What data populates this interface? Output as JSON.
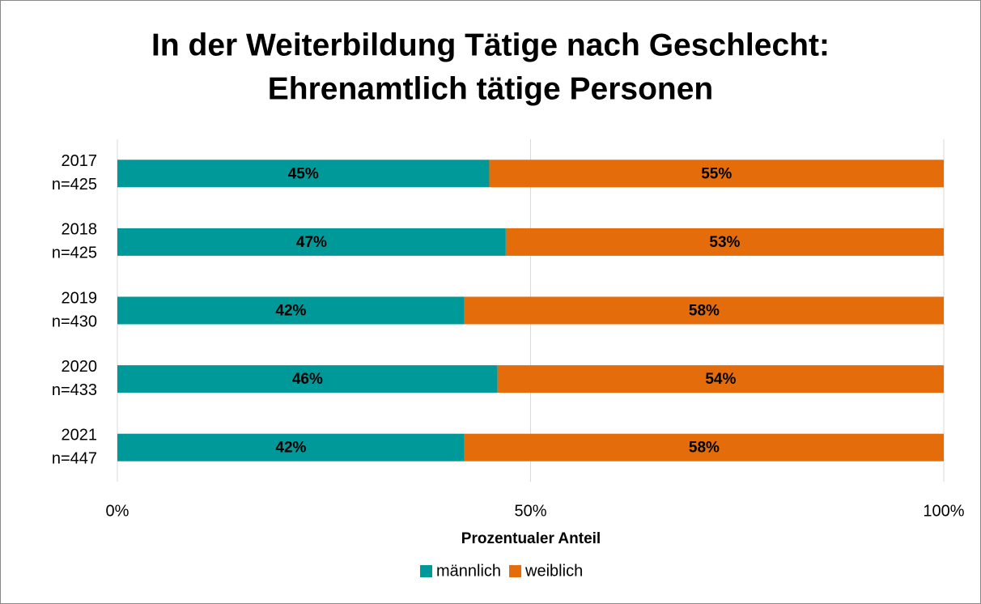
{
  "chart_data": {
    "type": "stacked-bar-horizontal",
    "title": [
      "In der Weiterbildung Tätige nach Geschlecht:",
      "Ehrenamtlich tätige Personen"
    ],
    "categories": [
      [
        "2017",
        "n=425"
      ],
      [
        "2018",
        "n=425"
      ],
      [
        "2019",
        "n=430"
      ],
      [
        "2020",
        "n=433"
      ],
      [
        "2021",
        "n=447"
      ]
    ],
    "series": [
      {
        "name": "männlich",
        "color": "#009999",
        "values": [
          45,
          47,
          42,
          46,
          42
        ],
        "value_labels": [
          "45%",
          "47%",
          "42%",
          "46%",
          "42%"
        ]
      },
      {
        "name": "weiblich",
        "color": "#e46c0a",
        "values": [
          55,
          53,
          58,
          54,
          58
        ],
        "value_labels": [
          "55%",
          "53%",
          "58%",
          "54%",
          "58%"
        ]
      }
    ],
    "xlim": [
      0,
      100
    ],
    "xticks": [
      {
        "value": 0,
        "label": "0%"
      },
      {
        "value": 50,
        "label": "50%"
      },
      {
        "value": 100,
        "label": "100%"
      }
    ],
    "x_label": "Prozentualer Anteil",
    "grid": true,
    "legend": "bottom"
  }
}
